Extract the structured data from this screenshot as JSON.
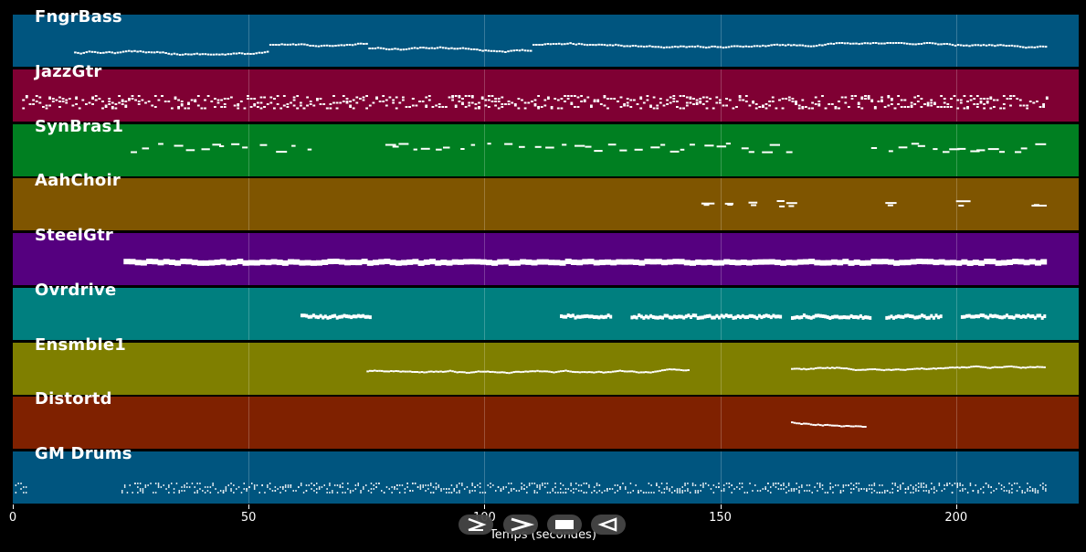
{
  "tracks": [
    {
      "name": "FngrBass",
      "color": "#00557F",
      "style": "bass"
    },
    {
      "name": "JazzGtr",
      "color": "#7F0033",
      "style": "chords"
    },
    {
      "name": "SynBras1",
      "color": "#007F21",
      "style": "stabs"
    },
    {
      "name": "AahChoir",
      "color": "#7F5500",
      "style": "sparse"
    },
    {
      "name": "SteelGtr",
      "color": "#55007F",
      "style": "block"
    },
    {
      "name": "Ovrdrive",
      "color": "#007F7F",
      "style": "segments"
    },
    {
      "name": "Ensmble1",
      "color": "#7F7F00",
      "style": "line"
    },
    {
      "name": "Distortd",
      "color": "#7F2100",
      "style": "short"
    },
    {
      "name": "GM Drums",
      "color": "#00557F",
      "style": "drums"
    }
  ],
  "axis": {
    "ticks": [
      0,
      50,
      100,
      150,
      200
    ],
    "tick_labels": [
      "0",
      "50",
      "100",
      "150",
      "200"
    ],
    "xlim": [
      0,
      226
    ],
    "xlabel": "Temps (secondes)"
  },
  "controls": [
    {
      "name": "play-button",
      "icon": "play-icon"
    },
    {
      "name": "forward-button",
      "icon": "chevron-right-icon"
    },
    {
      "name": "stop-button",
      "icon": "stop-icon"
    },
    {
      "name": "back-button",
      "icon": "back-icon"
    }
  ]
}
